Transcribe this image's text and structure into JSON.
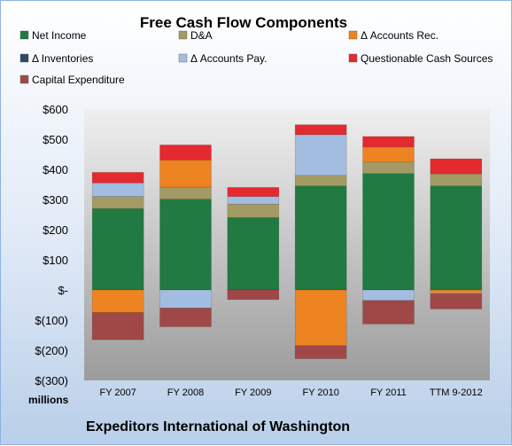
{
  "chart_data": {
    "type": "bar",
    "stacked": true,
    "title": "Free Cash Flow Components",
    "company": "Expeditors International of Washington",
    "units_label": "millions",
    "categories": [
      "FY 2007",
      "FY 2008",
      "FY 2009",
      "FY 2010",
      "FY 2011",
      "TTM 9-2012"
    ],
    "ylim": [
      -300,
      600
    ],
    "yticks": [
      600,
      500,
      400,
      300,
      200,
      100,
      0,
      -100,
      -200,
      -300
    ],
    "ytick_labels": [
      "$600",
      "$500",
      "$400",
      "$300",
      "$200",
      "$100",
      "$-",
      "$(100)",
      "$(200)",
      "$(300)"
    ],
    "grid": false,
    "legend_position": "top",
    "series": [
      {
        "name": "Net Income",
        "color": "#217a42",
        "values": [
          270,
          301,
          240,
          345,
          386,
          345
        ]
      },
      {
        "name": "D&A",
        "color": "#a39a64",
        "values": [
          40,
          40,
          45,
          35,
          38,
          40
        ]
      },
      {
        "name": "Δ Accounts Rec.",
        "color": "#ee8322",
        "values": [
          -75,
          90,
          0,
          -185,
          50,
          -10
        ]
      },
      {
        "name": "Δ Inventories",
        "color": "#2e4a66",
        "values": [
          0,
          0,
          0,
          0,
          0,
          0
        ]
      },
      {
        "name": "Δ Accounts Pay.",
        "color": "#a3bde0",
        "values": [
          45,
          -60,
          25,
          135,
          -35,
          -3
        ]
      },
      {
        "name": "Questionable Cash Sources",
        "color": "#e32a2e",
        "values": [
          35,
          50,
          30,
          33,
          35,
          50
        ]
      },
      {
        "name": "Capital Expenditure",
        "color": "#a04848",
        "values": [
          -90,
          -62,
          -32,
          -43,
          -78,
          -50
        ]
      }
    ]
  }
}
